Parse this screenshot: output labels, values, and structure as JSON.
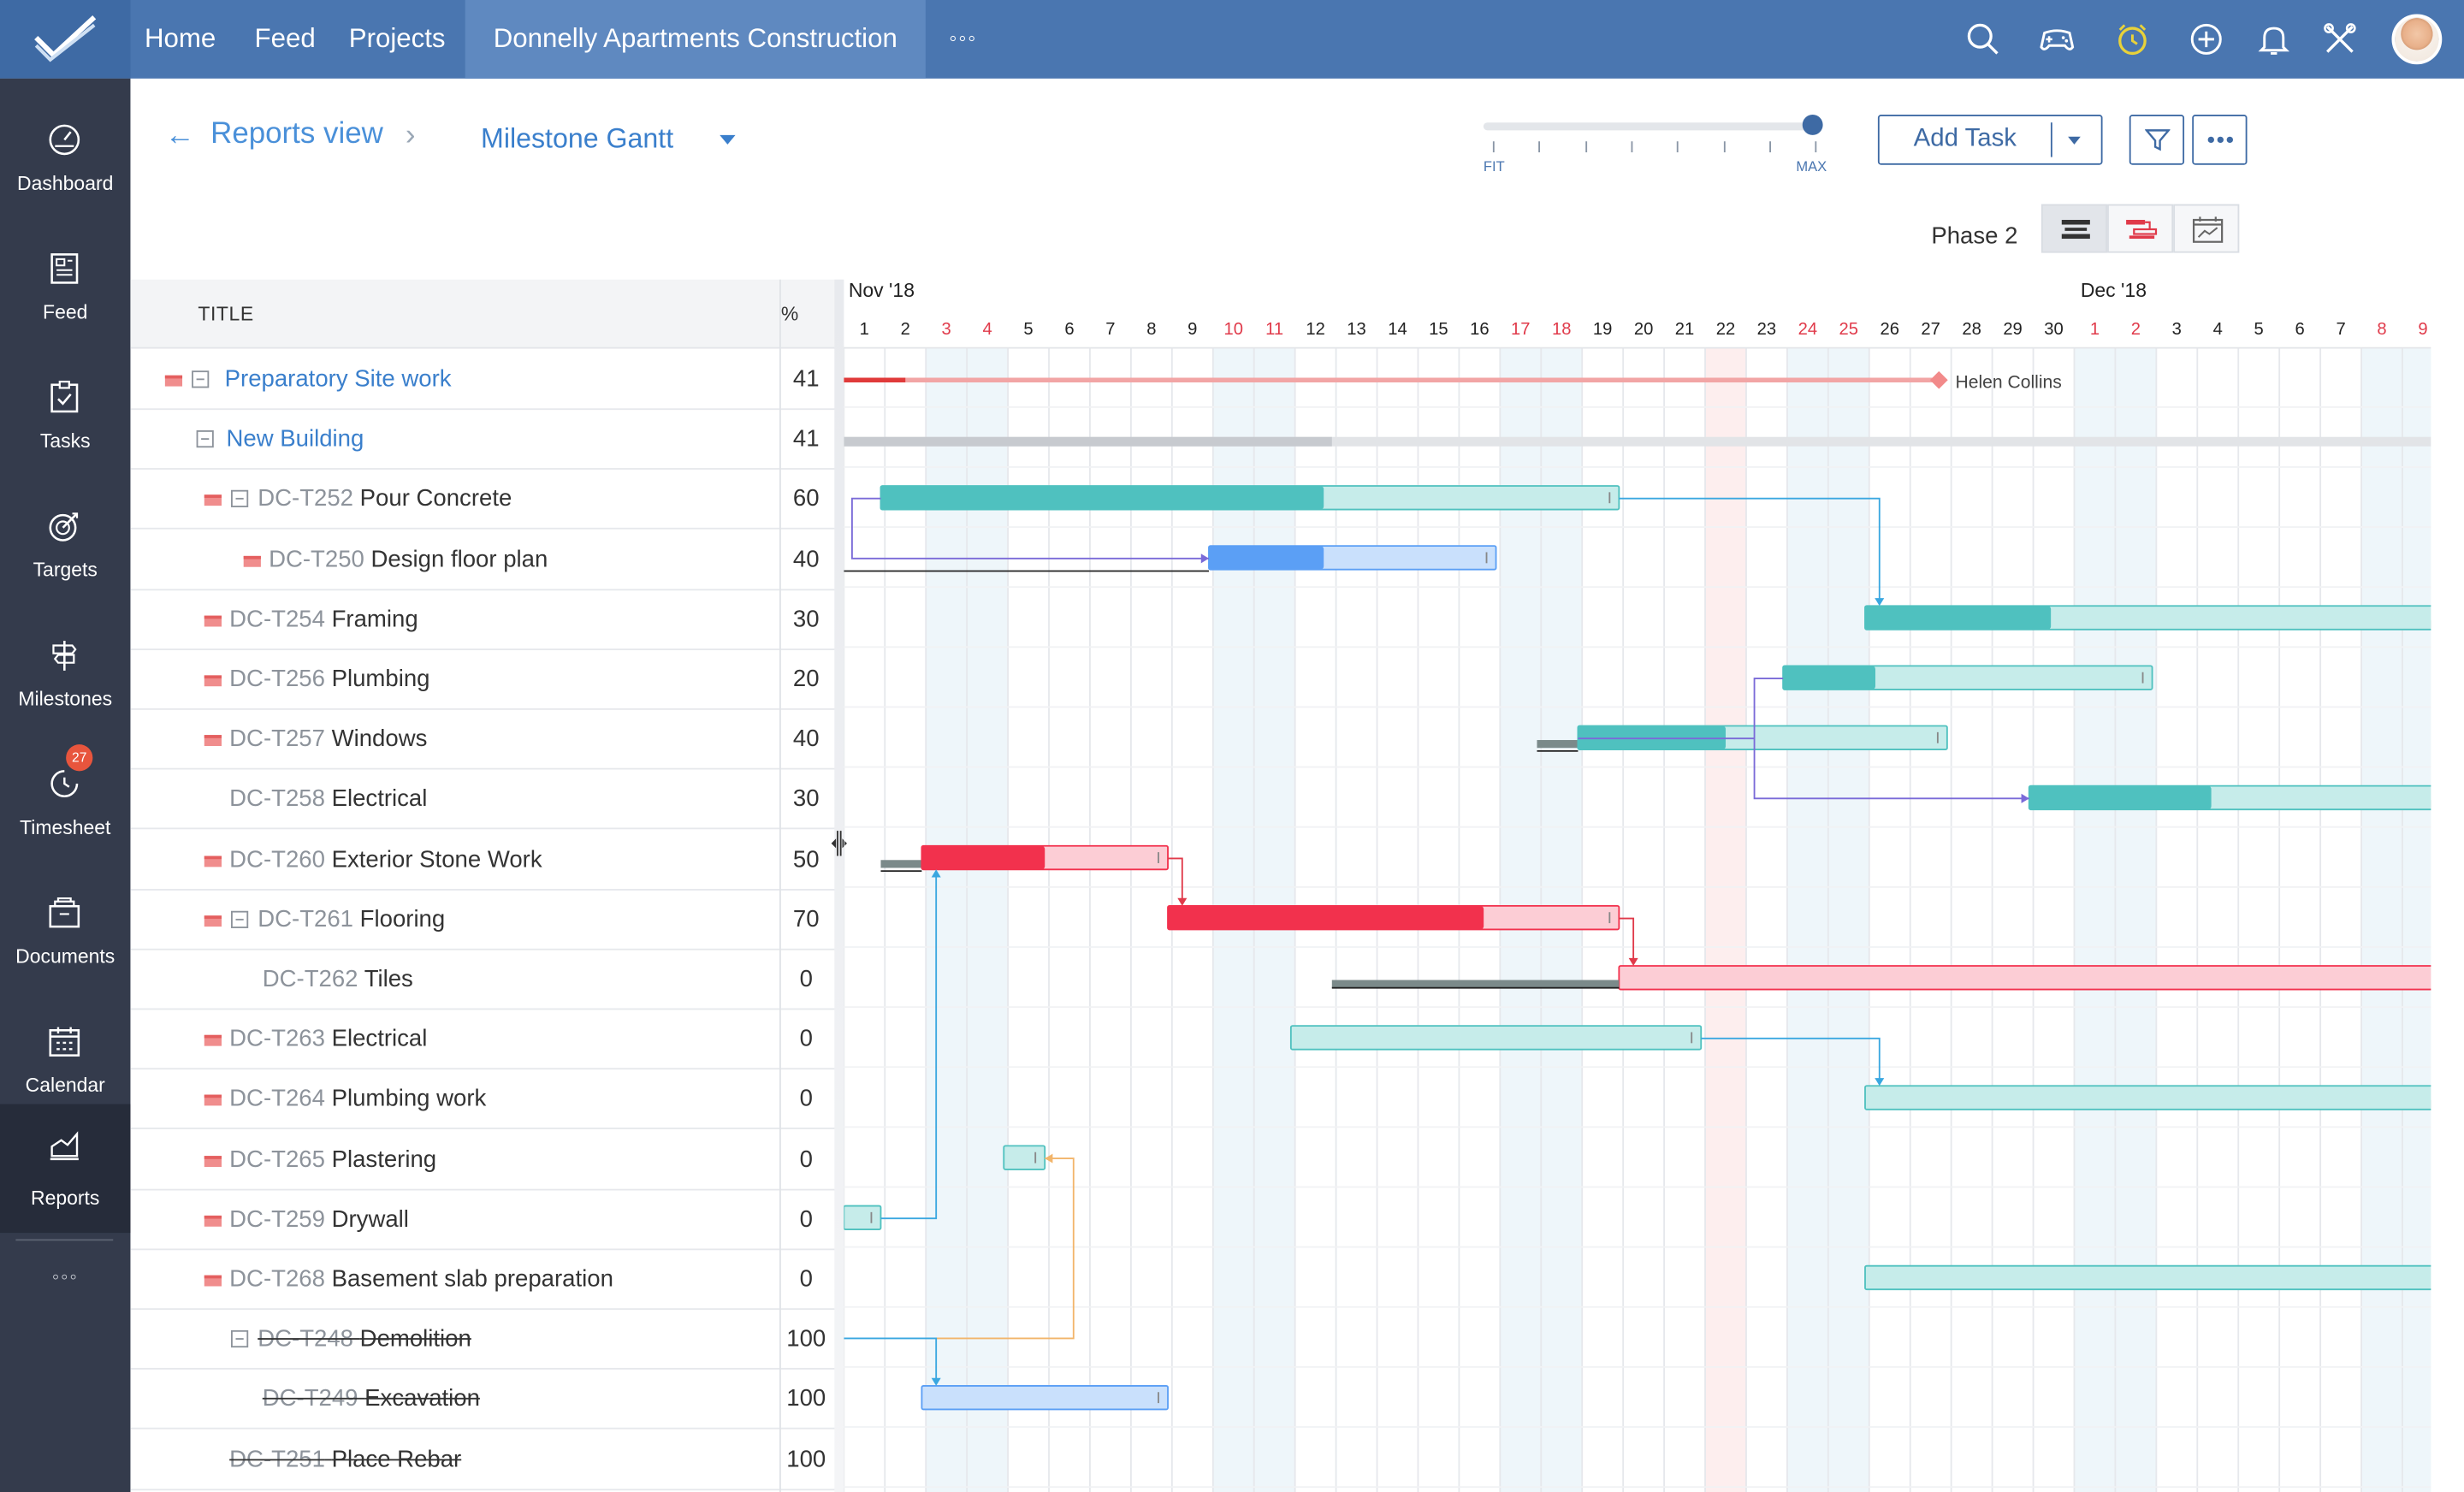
{
  "topbar": {
    "nav": [
      {
        "label": "Home"
      },
      {
        "label": "Feed"
      },
      {
        "label": "Projects"
      }
    ],
    "project": "Donnelly Apartments Construction",
    "more": "◦◦◦"
  },
  "sidebar": {
    "items": [
      {
        "label": "Dashboard"
      },
      {
        "label": "Feed"
      },
      {
        "label": "Tasks"
      },
      {
        "label": "Targets"
      },
      {
        "label": "Milestones"
      },
      {
        "label": "Timesheet"
      },
      {
        "label": "Documents"
      },
      {
        "label": "Calendar"
      },
      {
        "label": "Reports"
      }
    ],
    "timesheet_badge": "27",
    "more": "◦◦◦"
  },
  "header": {
    "back_arrow": "←",
    "breadcrumb": "Reports view",
    "chevron": "›",
    "view": "Milestone Gantt",
    "zoom": {
      "fit_label": "FIT",
      "max_label": "MAX",
      "level": 1.0
    },
    "add_task_label": "Add Task",
    "phase": "Phase 2"
  },
  "table": {
    "col_title": "TITLE",
    "col_pct": "%",
    "rows": [
      {
        "code": "",
        "name": "Preparatory Site work",
        "pct": "41"
      },
      {
        "code": "",
        "name": "New Building",
        "pct": "41"
      },
      {
        "code": "DC-T252",
        "name": "Pour Concrete",
        "pct": "60"
      },
      {
        "code": "DC-T250",
        "name": "Design floor plan",
        "pct": "40"
      },
      {
        "code": "DC-T254",
        "name": "Framing",
        "pct": "30"
      },
      {
        "code": "DC-T256",
        "name": "Plumbing",
        "pct": "20"
      },
      {
        "code": "DC-T257",
        "name": "Windows",
        "pct": "40"
      },
      {
        "code": "DC-T258",
        "name": "Electrical",
        "pct": "30"
      },
      {
        "code": "DC-T260",
        "name": "Exterior Stone Work",
        "pct": "50"
      },
      {
        "code": "DC-T261",
        "name": "Flooring",
        "pct": "70"
      },
      {
        "code": "DC-T262",
        "name": "Tiles",
        "pct": "0"
      },
      {
        "code": "DC-T263",
        "name": "Electrical",
        "pct": "0"
      },
      {
        "code": "DC-T264",
        "name": "Plumbing work",
        "pct": "0"
      },
      {
        "code": "DC-T265",
        "name": "Plastering",
        "pct": "0"
      },
      {
        "code": "DC-T259",
        "name": "Drywall",
        "pct": "0"
      },
      {
        "code": "DC-T268",
        "name": "Basement slab preparation",
        "pct": "0"
      },
      {
        "code": "DC-T248",
        "name": "Demolition",
        "pct": "100"
      },
      {
        "code": "DC-T249",
        "name": "Excavation",
        "pct": "100"
      },
      {
        "code": "DC-T251",
        "name": "Place Rebar",
        "pct": "100"
      }
    ]
  },
  "gantt": {
    "months": [
      {
        "label": "Nov '18"
      },
      {
        "label": "Dec '18"
      }
    ],
    "days": [
      "1",
      "2",
      "3",
      "4",
      "5",
      "6",
      "7",
      "8",
      "9",
      "10",
      "11",
      "12",
      "13",
      "14",
      "15",
      "16",
      "17",
      "18",
      "19",
      "20",
      "21",
      "22",
      "23",
      "24",
      "25",
      "26",
      "27",
      "28",
      "29",
      "30",
      "1",
      "2",
      "3",
      "4",
      "5",
      "6",
      "7",
      "8",
      "9"
    ],
    "weekend_days": [
      "3",
      "4",
      "10",
      "11",
      "17",
      "18",
      "24",
      "25",
      "1",
      "2",
      "8",
      "9"
    ],
    "holiday_day": "22",
    "milestone_owner": "Helen Collins",
    "colors": {
      "teal": "#4fc1bf",
      "teal_light": "#c6ecea",
      "blue": "#5b9ff5",
      "blue_light": "#c9e0fc",
      "red": "#f2314d",
      "red_light": "#fccdd5",
      "baseline": "#7b8a8a",
      "connector": "#3aa7e0"
    }
  }
}
